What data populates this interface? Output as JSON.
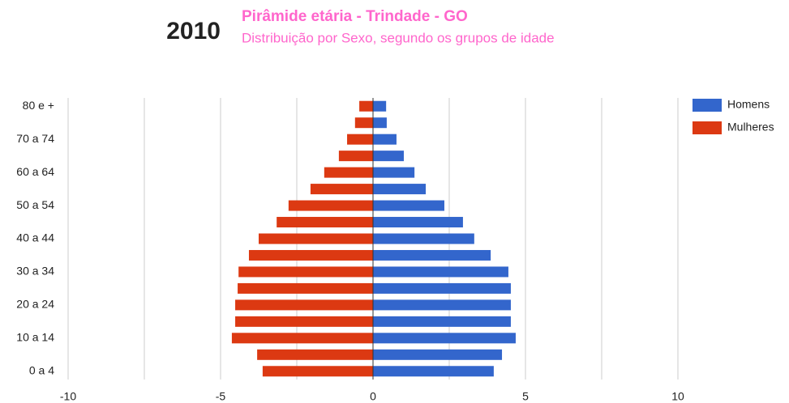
{
  "chart_data": {
    "type": "bar",
    "orientation": "horizontal",
    "year": "2010",
    "title": "Pirâmide etária - Trindade - GO",
    "subtitle": "Distribuição por Sexo, segundo os grupos de idade",
    "categories": [
      "0 a 4",
      null,
      "10 a 14",
      null,
      "20 a 24",
      null,
      "30 a 34",
      null,
      "40 a 44",
      null,
      "50 a 54",
      null,
      "60 a 64",
      null,
      "70 a 74",
      null,
      "80 e +"
    ],
    "series": [
      {
        "name": "Homens",
        "color": "#3366cc",
        "values": [
          3.96,
          4.23,
          4.68,
          4.52,
          4.52,
          4.52,
          4.44,
          3.86,
          3.32,
          2.95,
          2.34,
          1.73,
          1.36,
          1.01,
          0.77,
          0.45,
          0.43
        ]
      },
      {
        "name": "Mulheres",
        "color": "#dc3912",
        "values": [
          -3.62,
          -3.8,
          -4.63,
          -4.52,
          -4.52,
          -4.44,
          -4.41,
          -4.07,
          -3.75,
          -3.16,
          -2.77,
          -2.05,
          -1.6,
          -1.12,
          -0.85,
          -0.59,
          -0.45
        ]
      }
    ],
    "xlim": [
      -10,
      10
    ],
    "xticks": [
      -10,
      -5,
      0,
      5,
      10
    ],
    "xgrid": [
      -10,
      -7.5,
      -5,
      -2.5,
      2.5,
      5,
      7.5,
      10
    ],
    "grid": true,
    "legend": "right"
  }
}
